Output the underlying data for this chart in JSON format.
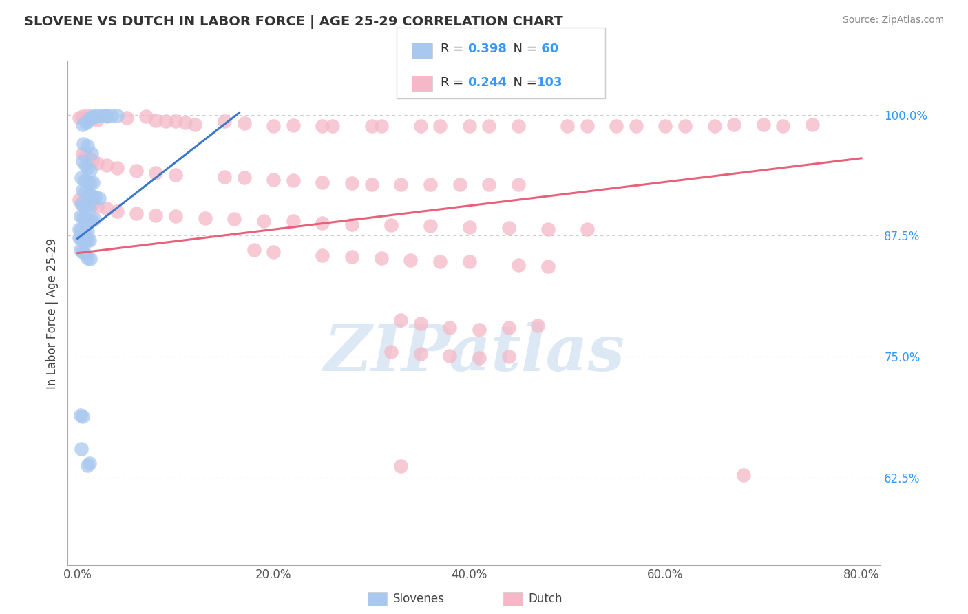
{
  "title": "SLOVENE VS DUTCH IN LABOR FORCE | AGE 25-29 CORRELATION CHART",
  "source": "Source: ZipAtlas.com",
  "ylabel": "In Labor Force | Age 25-29",
  "x_tick_labels": [
    "0.0%",
    "20.0%",
    "40.0%",
    "60.0%",
    "80.0%"
  ],
  "x_tick_values": [
    0.0,
    0.2,
    0.4,
    0.6,
    0.8
  ],
  "y_tick_labels_right": [
    "62.5%",
    "75.0%",
    "87.5%",
    "100.0%"
  ],
  "y_tick_values_right": [
    0.625,
    0.75,
    0.875,
    1.0
  ],
  "xlim": [
    -0.01,
    0.82
  ],
  "ylim": [
    0.535,
    1.055
  ],
  "slovene_color": "#a8c8f0",
  "dutch_color": "#f5b8c8",
  "slovene_line_color": "#3a78c9",
  "dutch_line_color": "#e8607a",
  "watermark_text": "ZIPatlas",
  "watermark_color": "#dde8f5",
  "R_slovene": 0.398,
  "N_slovene": 60,
  "R_dutch": 0.244,
  "N_dutch": 103,
  "slovene_line_x": [
    0.0,
    0.165
  ],
  "slovene_line_y": [
    0.872,
    1.002
  ],
  "dutch_line_x": [
    0.0,
    0.8
  ],
  "dutch_line_y": [
    0.857,
    0.955
  ],
  "slovene_points": [
    [
      0.005,
      0.99
    ],
    [
      0.009,
      0.992
    ],
    [
      0.01,
      0.993
    ],
    [
      0.013,
      0.997
    ],
    [
      0.015,
      0.998
    ],
    [
      0.018,
      0.998
    ],
    [
      0.02,
      0.999
    ],
    [
      0.025,
      0.999
    ],
    [
      0.028,
      0.999
    ],
    [
      0.03,
      0.999
    ],
    [
      0.035,
      0.999
    ],
    [
      0.04,
      0.999
    ],
    [
      0.006,
      0.97
    ],
    [
      0.01,
      0.968
    ],
    [
      0.014,
      0.96
    ],
    [
      0.005,
      0.952
    ],
    [
      0.008,
      0.948
    ],
    [
      0.01,
      0.945
    ],
    [
      0.013,
      0.943
    ],
    [
      0.004,
      0.935
    ],
    [
      0.007,
      0.932
    ],
    [
      0.01,
      0.931
    ],
    [
      0.013,
      0.93
    ],
    [
      0.016,
      0.93
    ],
    [
      0.005,
      0.922
    ],
    [
      0.008,
      0.92
    ],
    [
      0.012,
      0.918
    ],
    [
      0.015,
      0.916
    ],
    [
      0.018,
      0.915
    ],
    [
      0.022,
      0.914
    ],
    [
      0.004,
      0.908
    ],
    [
      0.006,
      0.906
    ],
    [
      0.009,
      0.905
    ],
    [
      0.012,
      0.904
    ],
    [
      0.003,
      0.895
    ],
    [
      0.005,
      0.894
    ],
    [
      0.008,
      0.892
    ],
    [
      0.011,
      0.891
    ],
    [
      0.014,
      0.891
    ],
    [
      0.017,
      0.892
    ],
    [
      0.002,
      0.882
    ],
    [
      0.004,
      0.881
    ],
    [
      0.007,
      0.88
    ],
    [
      0.01,
      0.879
    ],
    [
      0.002,
      0.873
    ],
    [
      0.004,
      0.872
    ],
    [
      0.006,
      0.871
    ],
    [
      0.008,
      0.87
    ],
    [
      0.01,
      0.87
    ],
    [
      0.012,
      0.87
    ],
    [
      0.003,
      0.86
    ],
    [
      0.005,
      0.858
    ],
    [
      0.007,
      0.857
    ],
    [
      0.01,
      0.852
    ],
    [
      0.013,
      0.851
    ],
    [
      0.003,
      0.69
    ],
    [
      0.005,
      0.688
    ],
    [
      0.004,
      0.655
    ],
    [
      0.01,
      0.638
    ],
    [
      0.012,
      0.64
    ]
  ],
  "dutch_points": [
    [
      0.002,
      0.997
    ],
    [
      0.005,
      0.998
    ],
    [
      0.01,
      0.999
    ],
    [
      0.015,
      0.996
    ],
    [
      0.02,
      0.995
    ],
    [
      0.03,
      0.998
    ],
    [
      0.05,
      0.997
    ],
    [
      0.07,
      0.998
    ],
    [
      0.08,
      0.994
    ],
    [
      0.09,
      0.993
    ],
    [
      0.1,
      0.993
    ],
    [
      0.11,
      0.992
    ],
    [
      0.12,
      0.99
    ],
    [
      0.15,
      0.993
    ],
    [
      0.17,
      0.991
    ],
    [
      0.2,
      0.988
    ],
    [
      0.22,
      0.989
    ],
    [
      0.25,
      0.988
    ],
    [
      0.26,
      0.988
    ],
    [
      0.3,
      0.988
    ],
    [
      0.31,
      0.988
    ],
    [
      0.35,
      0.988
    ],
    [
      0.37,
      0.988
    ],
    [
      0.4,
      0.988
    ],
    [
      0.42,
      0.988
    ],
    [
      0.45,
      0.988
    ],
    [
      0.5,
      0.988
    ],
    [
      0.52,
      0.988
    ],
    [
      0.55,
      0.988
    ],
    [
      0.57,
      0.988
    ],
    [
      0.6,
      0.988
    ],
    [
      0.62,
      0.988
    ],
    [
      0.65,
      0.988
    ],
    [
      0.67,
      0.99
    ],
    [
      0.7,
      0.99
    ],
    [
      0.72,
      0.988
    ],
    [
      0.75,
      0.99
    ],
    [
      0.005,
      0.96
    ],
    [
      0.008,
      0.958
    ],
    [
      0.012,
      0.955
    ],
    [
      0.015,
      0.953
    ],
    [
      0.02,
      0.95
    ],
    [
      0.03,
      0.948
    ],
    [
      0.04,
      0.945
    ],
    [
      0.06,
      0.942
    ],
    [
      0.08,
      0.94
    ],
    [
      0.1,
      0.938
    ],
    [
      0.15,
      0.936
    ],
    [
      0.17,
      0.935
    ],
    [
      0.2,
      0.933
    ],
    [
      0.22,
      0.932
    ],
    [
      0.25,
      0.93
    ],
    [
      0.28,
      0.929
    ],
    [
      0.3,
      0.928
    ],
    [
      0.33,
      0.928
    ],
    [
      0.36,
      0.928
    ],
    [
      0.39,
      0.928
    ],
    [
      0.42,
      0.928
    ],
    [
      0.45,
      0.928
    ],
    [
      0.002,
      0.912
    ],
    [
      0.005,
      0.91
    ],
    [
      0.01,
      0.908
    ],
    [
      0.015,
      0.907
    ],
    [
      0.02,
      0.905
    ],
    [
      0.03,
      0.903
    ],
    [
      0.04,
      0.9
    ],
    [
      0.06,
      0.898
    ],
    [
      0.08,
      0.896
    ],
    [
      0.1,
      0.895
    ],
    [
      0.13,
      0.893
    ],
    [
      0.16,
      0.892
    ],
    [
      0.19,
      0.89
    ],
    [
      0.22,
      0.89
    ],
    [
      0.25,
      0.888
    ],
    [
      0.28,
      0.887
    ],
    [
      0.32,
      0.886
    ],
    [
      0.36,
      0.885
    ],
    [
      0.4,
      0.884
    ],
    [
      0.44,
      0.883
    ],
    [
      0.48,
      0.882
    ],
    [
      0.52,
      0.882
    ],
    [
      0.18,
      0.86
    ],
    [
      0.2,
      0.858
    ],
    [
      0.25,
      0.855
    ],
    [
      0.28,
      0.853
    ],
    [
      0.31,
      0.852
    ],
    [
      0.34,
      0.85
    ],
    [
      0.37,
      0.848
    ],
    [
      0.4,
      0.848
    ],
    [
      0.45,
      0.845
    ],
    [
      0.48,
      0.843
    ],
    [
      0.33,
      0.788
    ],
    [
      0.35,
      0.784
    ],
    [
      0.38,
      0.78
    ],
    [
      0.41,
      0.778
    ],
    [
      0.44,
      0.78
    ],
    [
      0.47,
      0.782
    ],
    [
      0.32,
      0.755
    ],
    [
      0.35,
      0.753
    ],
    [
      0.38,
      0.751
    ],
    [
      0.41,
      0.749
    ],
    [
      0.44,
      0.75
    ],
    [
      0.33,
      0.637
    ],
    [
      0.68,
      0.628
    ]
  ]
}
